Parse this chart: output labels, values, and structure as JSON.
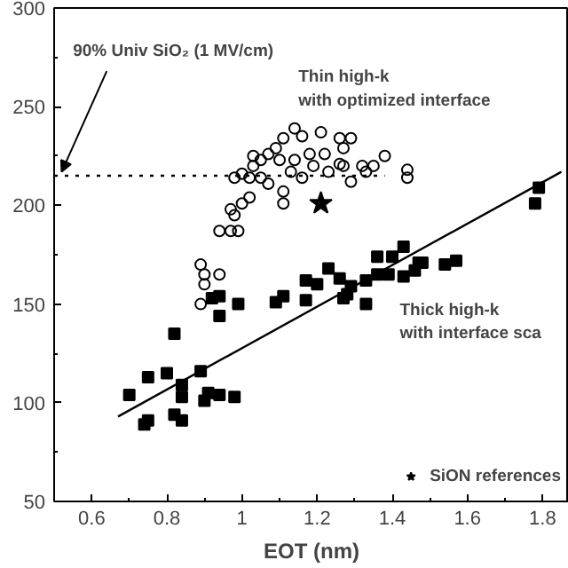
{
  "chart_data": {
    "type": "scatter",
    "xlabel": "EOT (nm)",
    "xlim": [
      0.5,
      1.87
    ],
    "ylim": [
      50,
      300
    ],
    "xticks": [
      0.6,
      0.8,
      1.0,
      1.2,
      1.4,
      1.6,
      1.8
    ],
    "yticks": [
      50,
      100,
      150,
      200,
      250,
      300
    ],
    "grid": false,
    "legend": "bottom right",
    "series": [
      {
        "color": "#000000",
        "marker": "circle",
        "x": [
          0.89,
          0.9,
          0.9,
          0.89,
          0.94,
          0.94,
          0.97,
          0.99,
          0.98,
          0.97,
          1.0,
          1.02,
          0.98,
          1.02,
          1.03,
          1.05,
          1.07,
          1.1,
          1.11,
          1.11,
          1.13,
          1.14,
          1.16,
          1.16,
          1.18,
          1.19,
          1.21,
          1.22,
          1.23,
          1.26,
          1.26,
          1.27,
          1.29,
          1.27,
          1.29,
          1.32,
          1.33,
          1.35,
          1.38,
          1.44,
          1.44,
          1.07,
          1.09,
          1.14,
          1.0,
          1.03,
          1.05,
          1.11
        ],
        "values": [
          170,
          165,
          160,
          150,
          165,
          187,
          187,
          187,
          195,
          198,
          201,
          204,
          214,
          214,
          220,
          223,
          226,
          223,
          201,
          207,
          217,
          223,
          235,
          214,
          226,
          220,
          237,
          226,
          217,
          234,
          221,
          229,
          234,
          220,
          212,
          220,
          217,
          220,
          225,
          218,
          214,
          211,
          229,
          239,
          216,
          225,
          214,
          234
        ]
      },
      {
        "color": "#000000",
        "marker": "square",
        "x": [
          0.7,
          0.75,
          0.8,
          0.82,
          0.84,
          0.84,
          0.82,
          0.84,
          0.74,
          0.75,
          0.89,
          0.9,
          0.91,
          0.94,
          0.98,
          0.92,
          0.94,
          0.94,
          0.99,
          1.09,
          1.11,
          1.17,
          1.17,
          1.2,
          1.23,
          1.26,
          1.27,
          1.28,
          1.29,
          1.33,
          1.33,
          1.36,
          1.4,
          1.39,
          1.43,
          1.46,
          1.48,
          1.54,
          1.57,
          1.79,
          1.78,
          1.43,
          1.36,
          1.47
        ],
        "values": [
          104,
          113,
          115,
          135,
          109,
          103,
          94,
          91,
          89,
          91,
          116,
          101,
          105,
          104,
          103,
          153,
          154,
          144,
          150,
          151,
          154,
          162,
          152,
          160,
          168,
          163,
          153,
          155,
          159,
          162,
          150,
          165,
          174,
          165,
          164,
          167,
          171,
          170,
          172,
          209,
          201,
          179,
          174,
          171
        ]
      },
      {
        "name": "SiON references",
        "color": "#000000",
        "marker": "star",
        "x": [
          1.21
        ],
        "values": [
          201
        ]
      },
      {
        "type": "line",
        "color": "#000000",
        "marker": "none",
        "line_style": "dotted",
        "x": [
          0.5,
          1.38
        ],
        "values": [
          215,
          215
        ]
      },
      {
        "type": "line",
        "color": "#000000",
        "marker": "none",
        "line_style": "solid",
        "x": [
          0.67,
          1.85
        ],
        "values": [
          93,
          217
        ]
      }
    ],
    "annotations": [
      {
        "text": "90% Univ SiO₂ (1 MV/cm)",
        "x": 0.5,
        "y": 215
      },
      "Thin high-k\nwith optimized interface",
      "Thick high-k\nwith interface sca"
    ]
  }
}
